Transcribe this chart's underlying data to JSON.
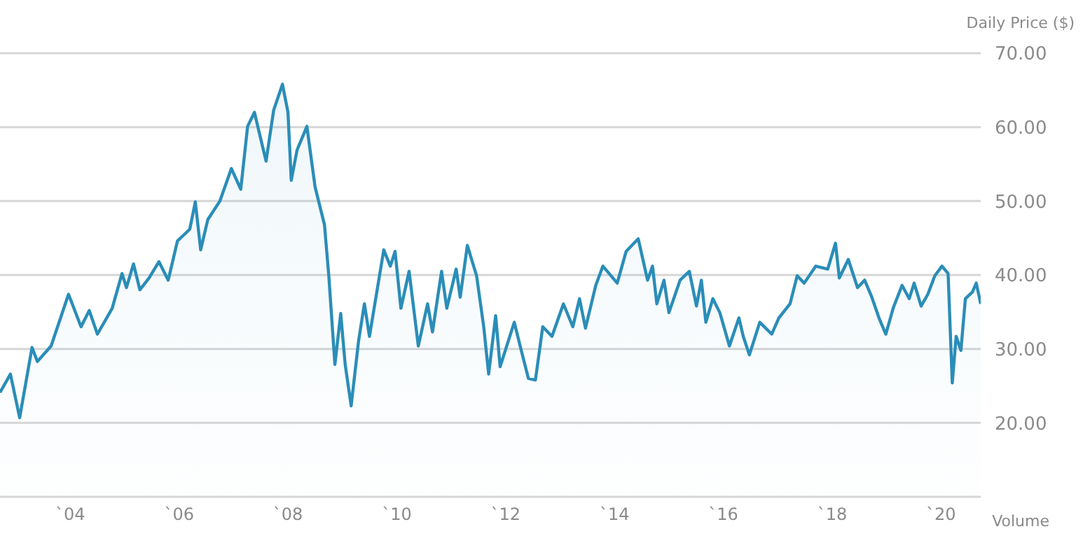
{
  "chart_data": {
    "type": "area",
    "ylabel": "Daily Price ($)",
    "annotations": [
      "Volume"
    ],
    "xlim": [
      "2002-09-16",
      "2020-09-24"
    ],
    "xticks": [
      {
        "value": "2004",
        "label": "`04"
      },
      {
        "value": "2006",
        "label": "`06"
      },
      {
        "value": "2008",
        "label": "`08"
      },
      {
        "value": "2010",
        "label": "`10"
      },
      {
        "value": "2012",
        "label": "`12"
      },
      {
        "value": "2014",
        "label": "`14"
      },
      {
        "value": "2016",
        "label": "`16"
      },
      {
        "value": "2018",
        "label": "`18"
      },
      {
        "value": "2020",
        "label": "`20"
      }
    ],
    "ylim": [
      10,
      70
    ],
    "yticks": [
      {
        "value": 10,
        "label": null
      },
      {
        "value": 20,
        "label": "20.00"
      },
      {
        "value": 30,
        "label": "30.00"
      },
      {
        "value": 40,
        "label": "40.00"
      },
      {
        "value": 50,
        "label": "50.00"
      },
      {
        "value": 60,
        "label": "60.00"
      },
      {
        "value": 70,
        "label": "70.00"
      }
    ],
    "grid": "y",
    "x": [
      "2002-09-16",
      "2002-11-25",
      "2003-01-26",
      "2003-04-19",
      "2003-05-25",
      "2003-08-25",
      "2003-12-20",
      "2004-03-13",
      "2004-05-07",
      "2004-07-01",
      "2004-10-08",
      "2004-12-13",
      "2005-01-12",
      "2005-02-28",
      "2005-04-12",
      "2005-06-13",
      "2005-08-18",
      "2005-10-19",
      "2005-12-20",
      "2006-03-13",
      "2006-04-19",
      "2006-05-25",
      "2006-07-12",
      "2006-10-01",
      "2006-12-17",
      "2007-02-18",
      "2007-04-05",
      "2007-05-21",
      "2007-06-24",
      "2007-08-07",
      "2007-09-27",
      "2007-11-25",
      "2008-01-01",
      "2008-01-23",
      "2008-03-02",
      "2008-05-07",
      "2008-07-01",
      "2008-09-02",
      "2008-10-01",
      "2008-11-11",
      "2008-12-20",
      "2009-01-19",
      "2009-02-28",
      "2009-04-19",
      "2009-05-28",
      "2009-07-01",
      "2009-10-05",
      "2009-11-18",
      "2009-12-20",
      "2010-01-28",
      "2010-03-24",
      "2010-05-25",
      "2010-07-26",
      "2010-08-28",
      "2010-10-28",
      "2010-12-02",
      "2011-02-03",
      "2011-03-02",
      "2011-04-19",
      "2011-06-20",
      "2011-08-07",
      "2011-09-09",
      "2011-10-26",
      "2011-11-25",
      "2012-02-28",
      "2012-04-15",
      "2012-06-02",
      "2012-07-19",
      "2012-09-06",
      "2012-11-07",
      "2013-01-23",
      "2013-03-27",
      "2013-05-11",
      "2013-06-20",
      "2013-08-28",
      "2013-10-15",
      "2014-01-19",
      "2014-03-20",
      "2014-06-09",
      "2014-08-11",
      "2014-09-13",
      "2014-10-12",
      "2014-11-29",
      "2015-01-01",
      "2015-03-17",
      "2015-05-18",
      "2015-07-05",
      "2015-08-07",
      "2015-09-06",
      "2015-10-23",
      "2015-12-09",
      "2016-02-11",
      "2016-04-15",
      "2016-05-14",
      "2016-06-24",
      "2016-09-02",
      "2016-11-21",
      "2017-01-08",
      "2017-03-24",
      "2017-05-11",
      "2017-06-27",
      "2017-09-13",
      "2017-12-02",
      "2018-01-23",
      "2018-02-18",
      "2018-04-19",
      "2018-06-20",
      "2018-08-07",
      "2018-09-24",
      "2018-11-11",
      "2018-12-27",
      "2019-02-14",
      "2019-04-15",
      "2019-06-02",
      "2019-07-05",
      "2019-08-21",
      "2019-10-05",
      "2019-11-21",
      "2020-01-08",
      "2020-02-18",
      "2020-03-17",
      "2020-04-12",
      "2020-05-14",
      "2020-06-13",
      "2020-07-30",
      "2020-08-25",
      "2020-09-24"
    ],
    "series": [
      {
        "color": "#2a8db8",
        "values": [
          24.1,
          26.6,
          20.7,
          30.2,
          28.3,
          30.4,
          37.4,
          33.0,
          35.2,
          32.0,
          35.5,
          40.2,
          38.3,
          41.5,
          38.0,
          39.6,
          41.8,
          39.3,
          44.6,
          46.2,
          49.9,
          43.4,
          47.5,
          50.0,
          54.4,
          51.6,
          60.1,
          62.0,
          59.1,
          55.4,
          62.3,
          65.8,
          62.0,
          52.8,
          56.9,
          60.1,
          51.9,
          46.8,
          39.9,
          27.9,
          34.8,
          27.9,
          22.3,
          31.1,
          36.1,
          31.7,
          43.4,
          41.2,
          43.2,
          35.5,
          40.5,
          30.4,
          36.1,
          32.3,
          40.5,
          35.5,
          40.8,
          37.0,
          44.0,
          39.9,
          33.0,
          26.6,
          34.5,
          27.6,
          33.6,
          29.8,
          26.0,
          25.8,
          33.0,
          31.7,
          36.1,
          33.0,
          36.8,
          32.8,
          38.6,
          41.2,
          38.9,
          43.2,
          44.9,
          39.3,
          41.2,
          36.1,
          39.3,
          34.9,
          39.3,
          40.5,
          35.8,
          39.3,
          33.6,
          36.8,
          34.9,
          30.4,
          34.2,
          31.7,
          29.2,
          33.6,
          32.0,
          34.2,
          36.1,
          39.9,
          38.9,
          41.2,
          40.8,
          44.3,
          39.6,
          42.1,
          38.3,
          39.3,
          37.0,
          34.2,
          32.0,
          35.5,
          38.6,
          36.8,
          38.9,
          35.8,
          37.4,
          39.9,
          41.2,
          40.2,
          25.4,
          31.7,
          29.8,
          36.8,
          37.7,
          38.9,
          36.1
        ]
      }
    ]
  }
}
